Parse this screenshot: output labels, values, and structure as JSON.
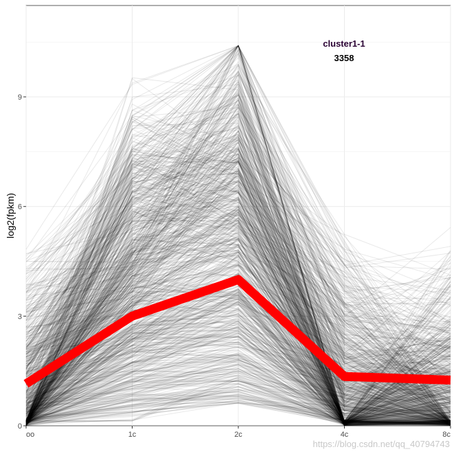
{
  "chart_data": {
    "type": "line",
    "title": "",
    "xlabel": "",
    "ylabel": "log2(fpkm)",
    "categories": [
      "oo",
      "1c",
      "2c",
      "4c",
      "8c"
    ],
    "ylim": [
      0,
      11.5
    ],
    "yticks": [
      0,
      3,
      6,
      9
    ],
    "grid": true,
    "legend": "none",
    "annotation": {
      "title": "cluster1-1",
      "count": "3358"
    },
    "summary_series": {
      "name": "",
      "color": "#ff0000",
      "values": [
        1.15,
        3.0,
        4.0,
        1.35,
        1.25
      ]
    },
    "background_series_color": "#000000",
    "background_series_count": 3358
  },
  "watermark": "https://blog.csdn.net/qq_40794743"
}
